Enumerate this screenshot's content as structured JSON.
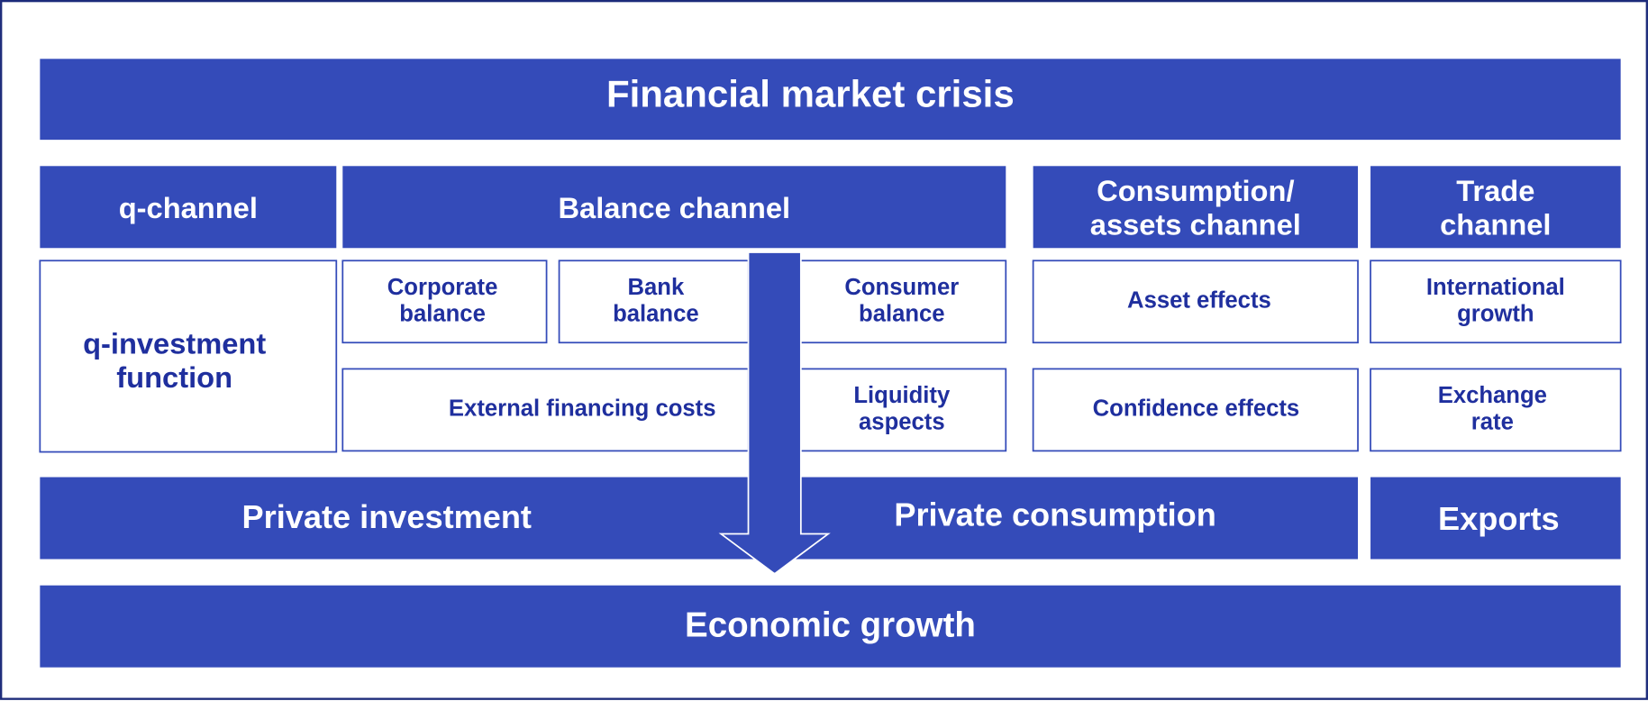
{
  "title": "Financial market crisis",
  "channels": [
    {
      "lines": [
        "q-channel"
      ]
    },
    {
      "lines": [
        "Balance channel"
      ]
    },
    {
      "lines": [
        "Consumption/",
        "assets channel"
      ]
    },
    {
      "lines": [
        "Trade",
        "channel"
      ]
    }
  ],
  "boxes": [
    {
      "lines": [
        "q-investment",
        "function"
      ]
    },
    {
      "lines": [
        "Corporate",
        "balance"
      ]
    },
    {
      "lines": [
        "Bank",
        "balance"
      ]
    },
    {
      "lines": [
        "Consumer",
        "balance"
      ]
    },
    {
      "lines": [
        "External financing costs"
      ]
    },
    {
      "lines": [
        "Liquidity",
        "aspects"
      ]
    },
    {
      "lines": [
        "Asset effects"
      ]
    },
    {
      "lines": [
        "Confidence effects"
      ]
    },
    {
      "lines": [
        "International",
        "growth"
      ]
    },
    {
      "lines": [
        "Exchange",
        "rate"
      ]
    }
  ],
  "outcomes": [
    "Private investment",
    "Private consumption",
    "Exports"
  ],
  "result": "Economic growth"
}
